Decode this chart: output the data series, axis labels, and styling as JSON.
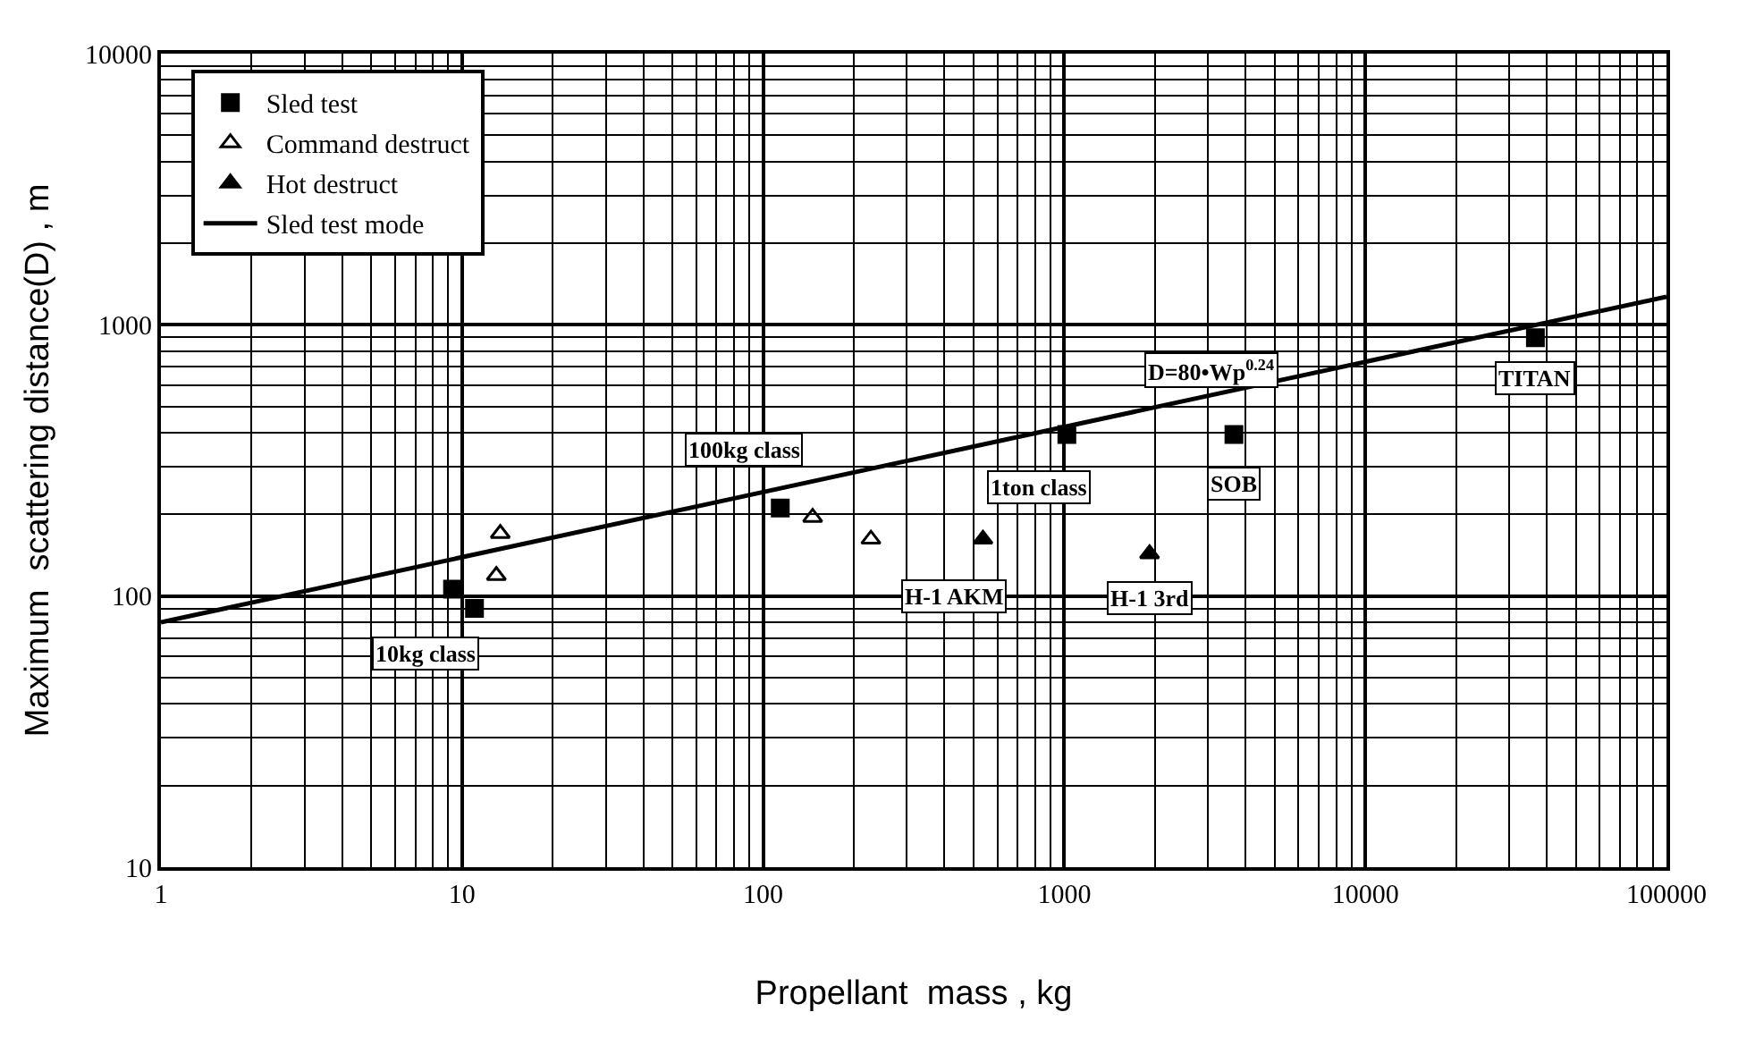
{
  "chart_data": {
    "type": "scatter",
    "xlabel": "Propellant  mass , kg",
    "ylabel": "Maximum  scattering distance(D) , m",
    "log": "xy",
    "xlim": [
      1,
      100000
    ],
    "xticks": [
      1,
      10,
      100,
      1000,
      10000,
      100000
    ],
    "ylim": [
      10,
      10000
    ],
    "yticks": [
      10,
      100,
      1000,
      10000
    ],
    "grid": true,
    "legend": "top left",
    "series": [
      {
        "name": "Sled test",
        "marker": "square",
        "color": "#000000",
        "x": [
          9.3,
          11,
          114,
          1020,
          3660,
          36700
        ],
        "values": [
          106,
          90,
          211,
          394,
          394,
          897
        ]
      },
      {
        "name": "Command destruct",
        "marker": "triangle-open",
        "color": "#000000",
        "x": [
          13.4,
          13,
          146,
          228
        ],
        "values": [
          170,
          119,
          195,
          162
        ]
      },
      {
        "name": "Hot destruct",
        "marker": "triangle",
        "color": "#000000",
        "x": [
          537,
          1920
        ],
        "values": [
          162,
          143
        ]
      },
      {
        "name": "Sled test mode",
        "type": "line",
        "marker": "none",
        "line_style": "solid",
        "color": "#000000",
        "x": [
          1,
          100000
        ],
        "values": [
          80,
          1270
        ]
      }
    ],
    "annotations": [
      {
        "text": "10kg class",
        "x": 9.3,
        "y": 106
      },
      {
        "text": "100kg class",
        "x": 114,
        "y": 211
      },
      {
        "text": "1ton class",
        "x": 1020,
        "y": 394
      },
      {
        "text": "H-1 AKM",
        "x": 537,
        "y": 162
      },
      {
        "text": "H-1 3rd",
        "x": 1920,
        "y": 143
      },
      {
        "text": "SOB",
        "x": 3660,
        "y": 394
      },
      {
        "text": "TITAN",
        "x": 36700,
        "y": 897
      },
      {
        "text": "D=80•Wp$^{0.24}$",
        "x": 3080,
        "y": 551
      }
    ]
  }
}
